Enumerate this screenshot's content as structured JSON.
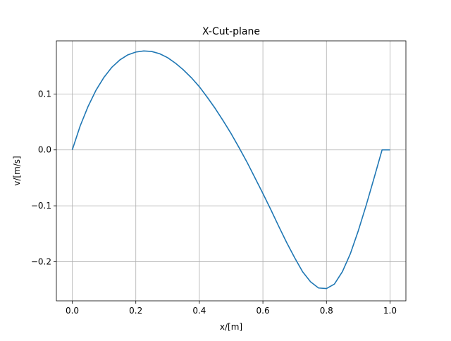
{
  "chart_data": {
    "type": "line",
    "title": "X-Cut-plane",
    "xlabel": "x/[m]",
    "ylabel": "v/[m/s]",
    "xlim": [
      -0.05,
      1.05
    ],
    "ylim": [
      -0.27,
      0.195
    ],
    "grid": true,
    "color": "#1f77b4",
    "x_ticks": [
      0.0,
      0.2,
      0.4,
      0.6,
      0.8,
      1.0
    ],
    "x_tick_labels": [
      "0.0",
      "0.2",
      "0.4",
      "0.6",
      "0.8",
      "1.0"
    ],
    "y_ticks": [
      -0.2,
      -0.1,
      0.0,
      0.1
    ],
    "y_tick_labels": [
      "−0.2",
      "−0.1",
      "0.0",
      "0.1"
    ],
    "series": [
      {
        "x": [
          0.0,
          0.025,
          0.05,
          0.075,
          0.1,
          0.125,
          0.15,
          0.175,
          0.2,
          0.225,
          0.25,
          0.275,
          0.3,
          0.325,
          0.35,
          0.375,
          0.4,
          0.425,
          0.45,
          0.475,
          0.5,
          0.525,
          0.55,
          0.575,
          0.6,
          0.625,
          0.65,
          0.675,
          0.7,
          0.725,
          0.75,
          0.775,
          0.8,
          0.825,
          0.85,
          0.875,
          0.9,
          0.925,
          0.95,
          0.975,
          1.0
        ],
        "y": [
          0.0,
          0.043,
          0.078,
          0.107,
          0.13,
          0.148,
          0.161,
          0.17,
          0.175,
          0.177,
          0.176,
          0.172,
          0.165,
          0.155,
          0.143,
          0.129,
          0.113,
          0.094,
          0.074,
          0.052,
          0.029,
          0.004,
          -0.022,
          -0.05,
          -0.078,
          -0.107,
          -0.137,
          -0.166,
          -0.193,
          -0.218,
          -0.236,
          -0.247,
          -0.248,
          -0.24,
          -0.218,
          -0.186,
          -0.145,
          -0.099,
          -0.05,
          0.0,
          0.0
        ]
      }
    ]
  }
}
